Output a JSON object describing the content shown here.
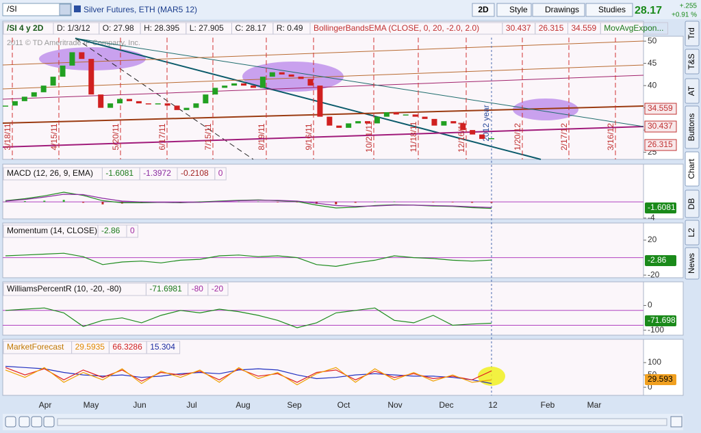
{
  "toolbar": {
    "symbol": "/SI",
    "description": "Silver Futures, ETH (MAR5 12)",
    "aggregation": "2D",
    "buttons": [
      "Style",
      "Drawings",
      "Studies"
    ],
    "last": "28.17",
    "change": "+.255",
    "change_pct": "+0.91 %"
  },
  "price_pane": {
    "header": [
      "/SI 4 y 2D",
      "D: 1/3/12",
      "O: 27.98",
      "H: 28.395",
      "L: 27.905",
      "C: 28.17",
      "R: 0.49",
      "BollingerBandsEMA (CLOSE, 0, 20, -2.0, 2.0)",
      "30.437",
      "26.315",
      "34.559",
      "MovAvgExpon..."
    ],
    "watermark": "2011 © TD Ameritrade IP Company, Inc.",
    "ylim": [
      23.4,
      51.1
    ],
    "yticks": [
      25,
      30,
      35,
      40,
      45,
      50
    ],
    "closes": [
      35.5,
      36.5,
      37.5,
      38.5,
      40,
      42,
      44.5,
      47.5,
      46,
      38,
      35,
      36,
      37,
      36.5,
      36,
      35.8,
      36,
      35.5,
      34.5,
      35,
      36,
      38,
      39.5,
      40,
      40.5,
      40,
      39.5,
      42,
      43,
      42.5,
      42,
      41.5,
      40,
      33,
      31,
      30.5,
      31.5,
      32,
      31.5,
      33,
      34,
      33.5,
      33.5,
      33,
      32.5,
      31,
      32,
      31.5,
      30,
      29,
      28,
      28.17
    ],
    "tags": [
      "34.559",
      "30.437",
      "26.315"
    ],
    "date_labels": [
      "3/18/11",
      "4/15/11",
      "5/20/11",
      "6/17/11",
      "7/15/11",
      "8/19/11",
      "9/16/11",
      "10/21/11",
      "11/18/11",
      "12/16/11",
      "1/20/12",
      "2/17/12",
      "3/16/12"
    ],
    "year_label": "2012 year"
  },
  "macd_pane": {
    "header": [
      "MACD (12, 26, 9, EMA)",
      "-1.6081",
      "-1.3972",
      "-0.2108",
      "0"
    ],
    "ylim": [
      -4.2,
      9
    ],
    "yticks": [
      -4
    ],
    "macd": [
      0.3,
      0.8,
      1.5,
      2.4,
      1.6,
      0.3,
      -0.2,
      -0.2,
      -0.1,
      -0.2,
      0,
      0.2,
      0.4,
      0.5,
      0.3,
      0.1,
      -0.8,
      -1.5,
      -1.3,
      -0.9,
      -0.7,
      -0.8,
      -1.0,
      -1.1,
      -1.4,
      -1.6081
    ],
    "avg": [
      0.2,
      0.6,
      1.2,
      1.9,
      1.8,
      0.9,
      0.2,
      0,
      -0.1,
      -0.1,
      -0.1,
      0.1,
      0.3,
      0.4,
      0.4,
      0.2,
      -0.3,
      -0.9,
      -1.1,
      -1.0,
      -0.8,
      -0.8,
      -0.9,
      -1.0,
      -1.2,
      -1.3972
    ],
    "diff": [
      0.1,
      0.2,
      0.3,
      0.5,
      -0.2,
      -0.6,
      -0.4,
      -0.2,
      0,
      -0.1,
      0.1,
      0.1,
      0.1,
      0.1,
      -0.1,
      -0.1,
      -0.5,
      -0.6,
      -0.2,
      0.1,
      0.1,
      0,
      -0.1,
      -0.1,
      -0.2,
      -0.2108
    ],
    "tag": "-1.6081"
  },
  "momentum_pane": {
    "header": [
      "Momentum (14, CLOSE)",
      "-2.86",
      "0"
    ],
    "ylim": [
      -23,
      38
    ],
    "yticks": [
      20,
      -20
    ],
    "values": [
      2,
      3,
      4,
      5,
      1,
      -8,
      -5,
      -4,
      -6,
      -3,
      -2,
      2,
      3,
      1,
      2,
      0,
      -8,
      -10,
      -6,
      -3,
      2,
      0,
      -1,
      -3,
      -4,
      -2.86
    ],
    "tag": "-2.86"
  },
  "williams_pane": {
    "header": [
      "WilliamsPercentR (10, -20, -80)",
      "-71.6981",
      "-80",
      "-20"
    ],
    "ylim": [
      -120,
      90
    ],
    "yticks": [
      0,
      -100
    ],
    "values": [
      -20,
      -15,
      -10,
      -30,
      -85,
      -60,
      -50,
      -70,
      -40,
      -20,
      -30,
      -15,
      -25,
      -40,
      -60,
      -90,
      -70,
      -30,
      -20,
      -10,
      -60,
      -70,
      -40,
      -80,
      -75,
      -71.6981
    ],
    "tag": "-71.698"
  },
  "forecast_pane": {
    "header": [
      "MarketForecast",
      "29.5935",
      "66.3286",
      "15.304"
    ],
    "ylim": [
      -33,
      189
    ],
    "yticks": [
      100,
      50,
      0
    ],
    "momentum": [
      70,
      40,
      80,
      20,
      60,
      30,
      75,
      15,
      65,
      40,
      70,
      20,
      80,
      35,
      60,
      10,
      55,
      80,
      20,
      75,
      30,
      60,
      25,
      50,
      20,
      29.5935
    ],
    "near": [
      80,
      50,
      75,
      30,
      70,
      40,
      70,
      25,
      60,
      50,
      65,
      30,
      75,
      45,
      55,
      20,
      60,
      70,
      30,
      65,
      40,
      55,
      35,
      45,
      30,
      66.3286
    ],
    "intermediate": [
      85,
      80,
      75,
      60,
      50,
      45,
      50,
      40,
      45,
      55,
      60,
      55,
      70,
      75,
      70,
      50,
      35,
      40,
      50,
      55,
      50,
      45,
      45,
      40,
      30,
      15.304
    ],
    "tag": "29.593"
  },
  "x_axis": {
    "months": [
      "Apr",
      "May",
      "Jun",
      "Jul",
      "Aug",
      "Sep",
      "Oct",
      "Nov",
      "Dec",
      "12",
      "Feb",
      "Mar"
    ]
  },
  "side_tabs": [
    "Trd",
    "T&S",
    "AT",
    "Buttons",
    "Chart",
    "DB",
    "L2",
    "News"
  ]
}
